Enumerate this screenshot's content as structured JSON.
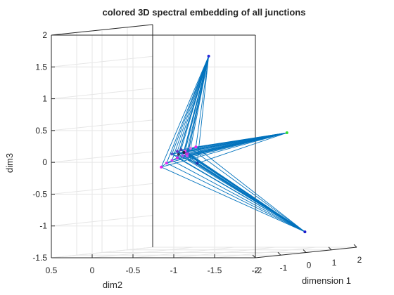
{
  "chart_data": {
    "type": "scatter",
    "projection": "3d",
    "title": "colored 3D spectral embedding of all junctions",
    "xlabel": "dimension 1",
    "ylabel": "dim2",
    "zlabel": "dim3",
    "x_ticks": [
      "-2",
      "-1",
      "0",
      "1",
      "2"
    ],
    "y_ticks": [
      "0.5",
      "0",
      "-0.5",
      "-1",
      "-1.5",
      "-2"
    ],
    "z_ticks": [
      "-1.5",
      "-1",
      "-0.5",
      "0",
      "0.5",
      "1",
      "1.5",
      "2"
    ],
    "xlim": [
      -2,
      2
    ],
    "ylim": [
      -2,
      0.5
    ],
    "zlim": [
      -1.5,
      2
    ],
    "grid": true,
    "edge_color": "#0072BD",
    "points": [
      {
        "x": -0.3,
        "y": -0.9,
        "z": 1.6,
        "color": "#2a2add"
      },
      {
        "x": 1.5,
        "y": -1.3,
        "z": 0.32,
        "color": "#33dd33"
      },
      {
        "x": 0.6,
        "y": -1.8,
        "z": -1.2,
        "color": "#1a1acc"
      },
      {
        "x": -0.4,
        "y": -0.35,
        "z": -0.14,
        "color": "#ee22ee"
      },
      {
        "x": -0.35,
        "y": -0.4,
        "z": -0.08,
        "color": "#dd33ee"
      },
      {
        "x": -0.3,
        "y": -0.45,
        "z": -0.04,
        "color": "#cc44ee"
      },
      {
        "x": -0.25,
        "y": -0.5,
        "z": 0.0,
        "color": "#dd22ee"
      },
      {
        "x": -0.2,
        "y": -0.55,
        "z": 0.03,
        "color": "#aa44ee"
      },
      {
        "x": -0.15,
        "y": -0.6,
        "z": 0.06,
        "color": "#8844ee"
      },
      {
        "x": -0.1,
        "y": -0.55,
        "z": 0.1,
        "color": "#ee44ee"
      },
      {
        "x": -0.05,
        "y": -0.6,
        "z": 0.14,
        "color": "#dd66ee"
      },
      {
        "x": 0.0,
        "y": -0.65,
        "z": 0.16,
        "color": "#ee22ee"
      },
      {
        "x": -0.2,
        "y": -0.5,
        "z": 0.05,
        "color": "#333366"
      },
      {
        "x": -0.15,
        "y": -0.55,
        "z": 0.08,
        "color": "#222244"
      },
      {
        "x": -0.1,
        "y": -0.5,
        "z": 0.12,
        "color": "#4444aa"
      },
      {
        "x": 0.05,
        "y": -0.65,
        "z": -0.1,
        "color": "#2233aa"
      },
      {
        "x": -0.3,
        "y": -0.45,
        "z": 0.06,
        "color": "#5555cc"
      },
      {
        "x": -0.25,
        "y": -0.5,
        "z": 0.1,
        "color": "#6633cc"
      },
      {
        "x": -0.05,
        "y": -0.55,
        "z": 0.05,
        "color": "#cc33cc"
      },
      {
        "x": -0.12,
        "y": -0.58,
        "z": 0.02,
        "color": "#bb55ee"
      }
    ]
  }
}
